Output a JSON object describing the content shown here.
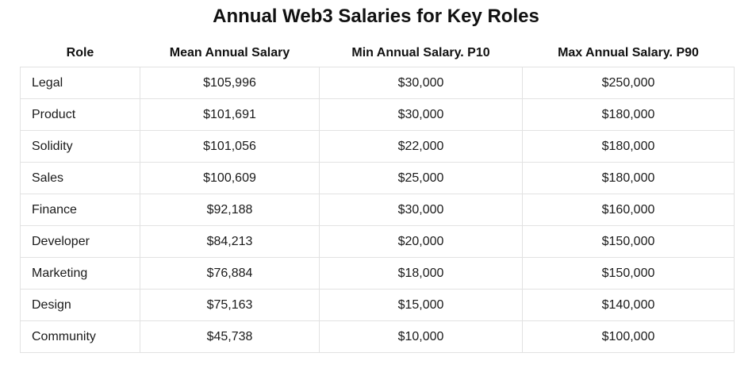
{
  "title": "Annual Web3 Salaries for Key Roles",
  "columns": [
    "Role",
    "Mean Annual Salary",
    "Min Annual Salary. P10",
    "Max Annual Salary. P90"
  ],
  "rows": [
    [
      "Legal",
      "$105,996",
      "$30,000",
      "$250,000"
    ],
    [
      "Product",
      "$101,691",
      "$30,000",
      "$180,000"
    ],
    [
      "Solidity",
      "$101,056",
      "$22,000",
      "$180,000"
    ],
    [
      "Sales",
      "$100,609",
      "$25,000",
      "$180,000"
    ],
    [
      "Finance",
      "$92,188",
      "$30,000",
      "$160,000"
    ],
    [
      "Developer",
      "$84,213",
      "$20,000",
      "$150,000"
    ],
    [
      "Marketing",
      "$76,884",
      "$18,000",
      "$150,000"
    ],
    [
      "Design",
      "$75,163",
      "$15,000",
      "$140,000"
    ],
    [
      "Community",
      "$45,738",
      "$10,000",
      "$100,000"
    ]
  ]
}
